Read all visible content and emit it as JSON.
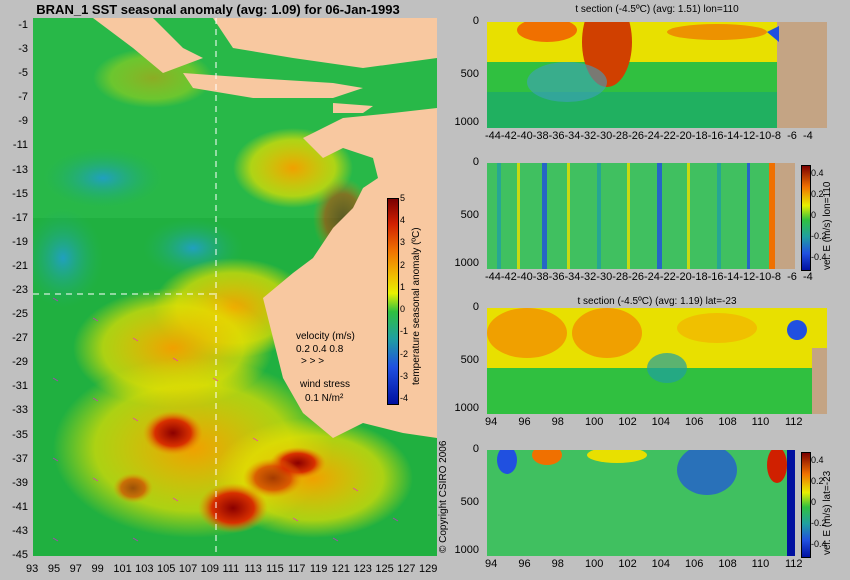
{
  "chart_data": [
    {
      "type": "heatmap",
      "title": "BRAN_1 SST seasonal anomaly (avg: 1.09) for 06-Jan-1993",
      "x_ticks": [
        "93",
        "95",
        "97",
        "99",
        "101",
        "103",
        "105",
        "107",
        "109",
        "111",
        "113",
        "115",
        "117",
        "119",
        "121",
        "123",
        "125",
        "127",
        "129"
      ],
      "y_ticks": [
        "-1",
        "-3",
        "-5",
        "-7",
        "-9",
        "-11",
        "-13",
        "-15",
        "-17",
        "-19",
        "-21",
        "-23",
        "-25",
        "-27",
        "-29",
        "-31",
        "-33",
        "-35",
        "-37",
        "-39",
        "-41",
        "-43",
        "-45"
      ],
      "xlim": [
        93,
        130
      ],
      "ylim": [
        -45,
        0
      ],
      "colorbar": {
        "label": "temperature seasonal anomaly (ºC)",
        "ticks": [
          "5",
          "4",
          "3",
          "2",
          "1",
          "0",
          "-1",
          "-2",
          "-3",
          "-4"
        ],
        "range": [
          -4,
          5
        ]
      },
      "legend": {
        "velocity_label": "velocity (m/s)",
        "velocity_values": "0.2 0.4 0.8",
        "velocity_glyphs": ">  >  >",
        "wind_label": "wind stress",
        "wind_value": "0.1 N/m²"
      },
      "guide_lines": {
        "lon": 110,
        "lat": -23
      },
      "copyright": "© Copyright CSIRO 2006"
    },
    {
      "type": "heatmap",
      "title": "t section (-4.5ºC) (avg: 1.51) lon=110",
      "x_ticks": [
        "-44",
        "-42",
        "-40",
        "-38",
        "-36",
        "-34",
        "-32",
        "-30",
        "-28",
        "-26",
        "-24",
        "-22",
        "-20",
        "-18",
        "-16",
        "-14",
        "-12",
        "-10",
        "-8",
        "-6",
        "-4"
      ],
      "y_ticks": [
        "0",
        "500",
        "1000"
      ],
      "xlim": [
        -45,
        -3
      ],
      "ylim": [
        1050,
        0
      ]
    },
    {
      "type": "heatmap",
      "title": "",
      "x_ticks": [
        "-44",
        "-42",
        "-40",
        "-38",
        "-36",
        "-34",
        "-32",
        "-30",
        "-28",
        "-26",
        "-24",
        "-22",
        "-20",
        "-18",
        "-16",
        "-14",
        "-12",
        "-10",
        "-8",
        "-6",
        "-4"
      ],
      "y_ticks": [
        "0",
        "500",
        "1000"
      ],
      "xlim": [
        -45,
        -3
      ],
      "ylim": [
        1050,
        0
      ],
      "colorbar": {
        "label": "vel. E (m/s) lon=110",
        "ticks": [
          "0.4",
          "0.2",
          "0",
          "-0.2",
          "-0.4"
        ],
        "range": [
          -0.5,
          0.5
        ]
      }
    },
    {
      "type": "heatmap",
      "title": "t section (-4.5ºC) (avg: 1.19) lat=-23",
      "x_ticks": [
        "94",
        "96",
        "98",
        "100",
        "102",
        "104",
        "106",
        "108",
        "110",
        "112"
      ],
      "y_ticks": [
        "0",
        "500",
        "1000"
      ],
      "xlim": [
        93,
        114
      ],
      "ylim": [
        1050,
        0
      ]
    },
    {
      "type": "heatmap",
      "title": "",
      "x_ticks": [
        "94",
        "96",
        "98",
        "100",
        "102",
        "104",
        "106",
        "108",
        "110",
        "112"
      ],
      "y_ticks": [
        "0",
        "500",
        "1000"
      ],
      "xlim": [
        93,
        114
      ],
      "ylim": [
        1050,
        0
      ],
      "colorbar": {
        "label": "vel. E (m/s) lat=-23",
        "ticks": [
          "0.4",
          "0.2",
          "0",
          "-0.2",
          "-0.4"
        ],
        "range": [
          -0.5,
          0.5
        ]
      }
    }
  ],
  "colors": {
    "land": "#f8c8a0",
    "bg": "#c0c0c0",
    "seafloor": "#c4a484",
    "guide": "#ffffff"
  }
}
